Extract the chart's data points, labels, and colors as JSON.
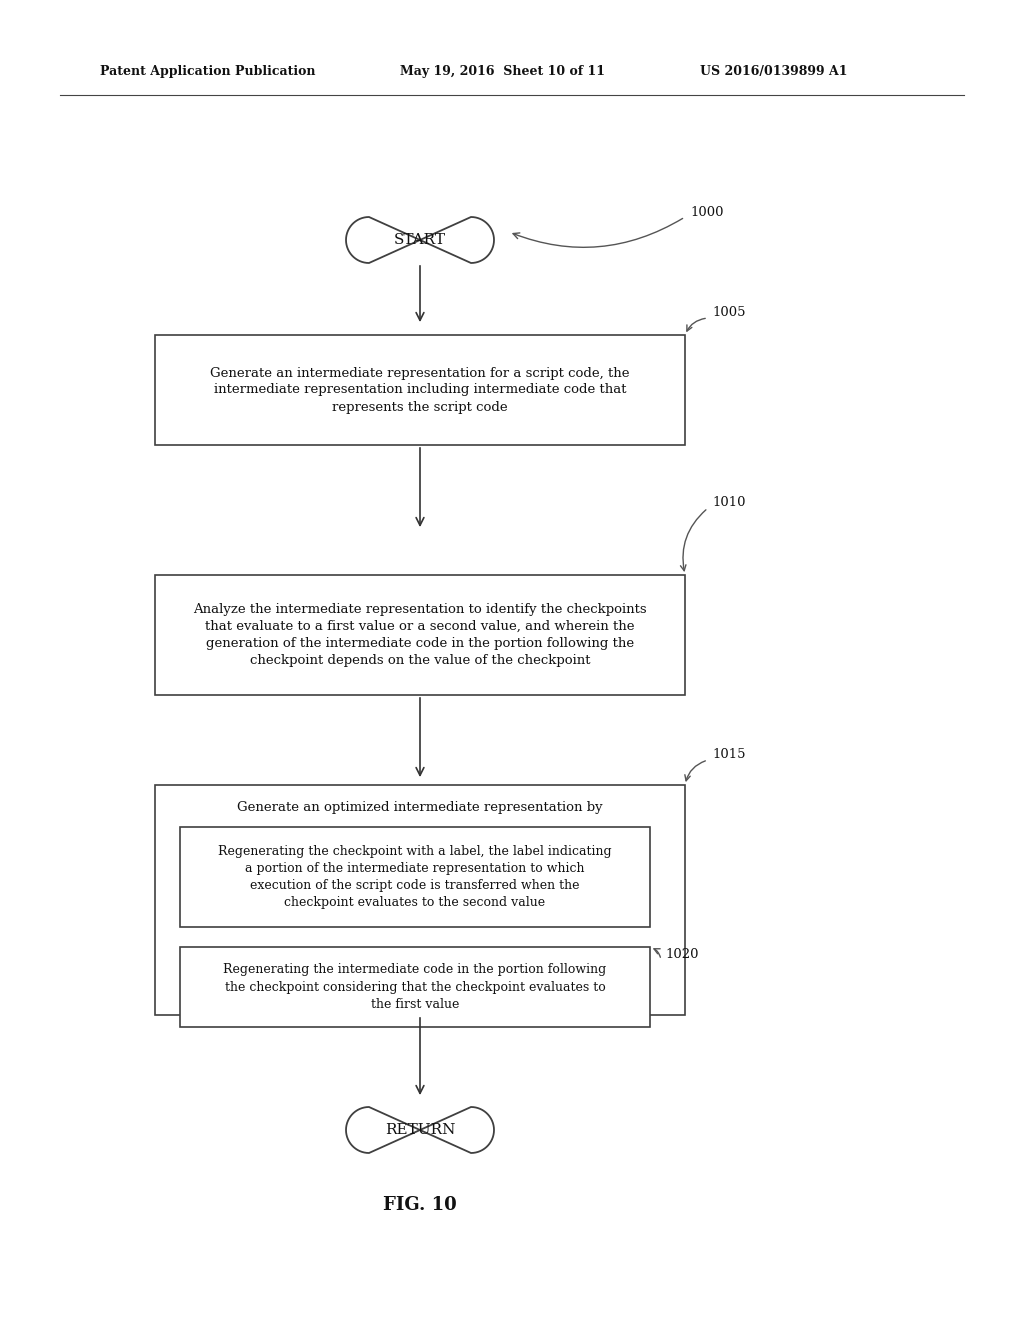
{
  "background_color": "#ffffff",
  "header_line1": "Patent Application Publication",
  "header_line2": "May 19, 2016  Sheet 10 of 11",
  "header_line3": "US 2016/0139899 A1",
  "fig_label": "FIG. 10",
  "start_text": "START",
  "return_text": "RETURN",
  "box1005_text": "Generate an intermediate representation for a script code, the\nintermediate representation including intermediate code that\nrepresents the script code",
  "box1010_text": "Analyze the intermediate representation to identify the checkpoints\nthat evaluate to a first value or a second value, and wherein the\ngeneration of the intermediate code in the portion following the\ncheckpoint depends on the value of the checkpoint",
  "box1015_title": "Generate an optimized intermediate representation by",
  "box_inner1_text": "Regenerating the checkpoint with a label, the label indicating\na portion of the intermediate representation to which\nexecution of the script code is transferred when the\ncheckpoint evaluates to the second value",
  "box1020_text": "Regenerating the intermediate code in the portion following\nthe checkpoint considering that the checkpoint evaluates to\nthe first value",
  "ref_1000": "1000",
  "ref_1005": "1005",
  "ref_1010": "1010",
  "ref_1015": "1015",
  "ref_1020": "1020"
}
